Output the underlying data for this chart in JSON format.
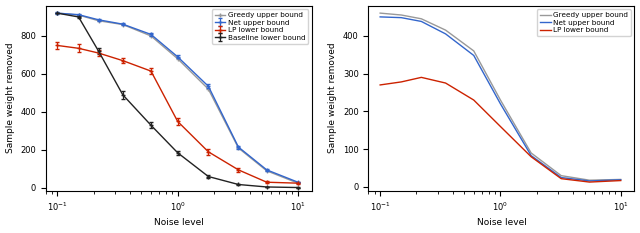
{
  "left": {
    "x": [
      0.1,
      0.15,
      0.22,
      0.35,
      0.6,
      1.0,
      1.8,
      3.2,
      5.5,
      10.0
    ],
    "greedy": [
      920,
      910,
      880,
      860,
      800,
      680,
      520,
      210,
      90,
      25
    ],
    "net": [
      920,
      912,
      885,
      862,
      808,
      690,
      535,
      215,
      95,
      30
    ],
    "net_err": [
      4,
      4,
      5,
      5,
      6,
      8,
      10,
      8,
      5,
      3
    ],
    "lp": [
      750,
      735,
      710,
      670,
      615,
      350,
      190,
      95,
      30,
      25
    ],
    "lp_err": [
      18,
      20,
      18,
      15,
      15,
      20,
      15,
      10,
      5,
      4
    ],
    "baseline": [
      920,
      900,
      720,
      490,
      330,
      185,
      60,
      18,
      5,
      2
    ],
    "base_err": [
      0,
      5,
      15,
      20,
      15,
      10,
      8,
      5,
      2,
      1
    ],
    "ylabel": "Sample weight removed",
    "xlabel": "Noise level",
    "ylim": [
      -15,
      960
    ],
    "yticks": [
      0,
      200,
      400,
      600,
      800
    ],
    "legend": [
      "Greedy upper bound",
      "Net upper bound",
      "LP lower bound",
      "Baseline lower bound"
    ]
  },
  "right": {
    "x": [
      0.1,
      0.15,
      0.22,
      0.35,
      0.6,
      1.0,
      1.8,
      3.2,
      5.5,
      10.0
    ],
    "greedy": [
      460,
      455,
      445,
      415,
      360,
      230,
      90,
      30,
      18,
      20
    ],
    "net": [
      450,
      448,
      438,
      405,
      348,
      220,
      83,
      25,
      16,
      19
    ],
    "lp": [
      270,
      278,
      290,
      275,
      230,
      160,
      80,
      22,
      13,
      17
    ],
    "ylabel": "Sample weight removed",
    "xlabel": "Noise level",
    "ylim": [
      -10,
      480
    ],
    "yticks": [
      0,
      100,
      200,
      300,
      400
    ],
    "legend": [
      "Greedy upper bound",
      "Net upper bound",
      "LP lower bound"
    ]
  },
  "gray": "#999999",
  "blue": "#3366cc",
  "red": "#cc2200",
  "black": "#222222",
  "bg": "#ffffff"
}
